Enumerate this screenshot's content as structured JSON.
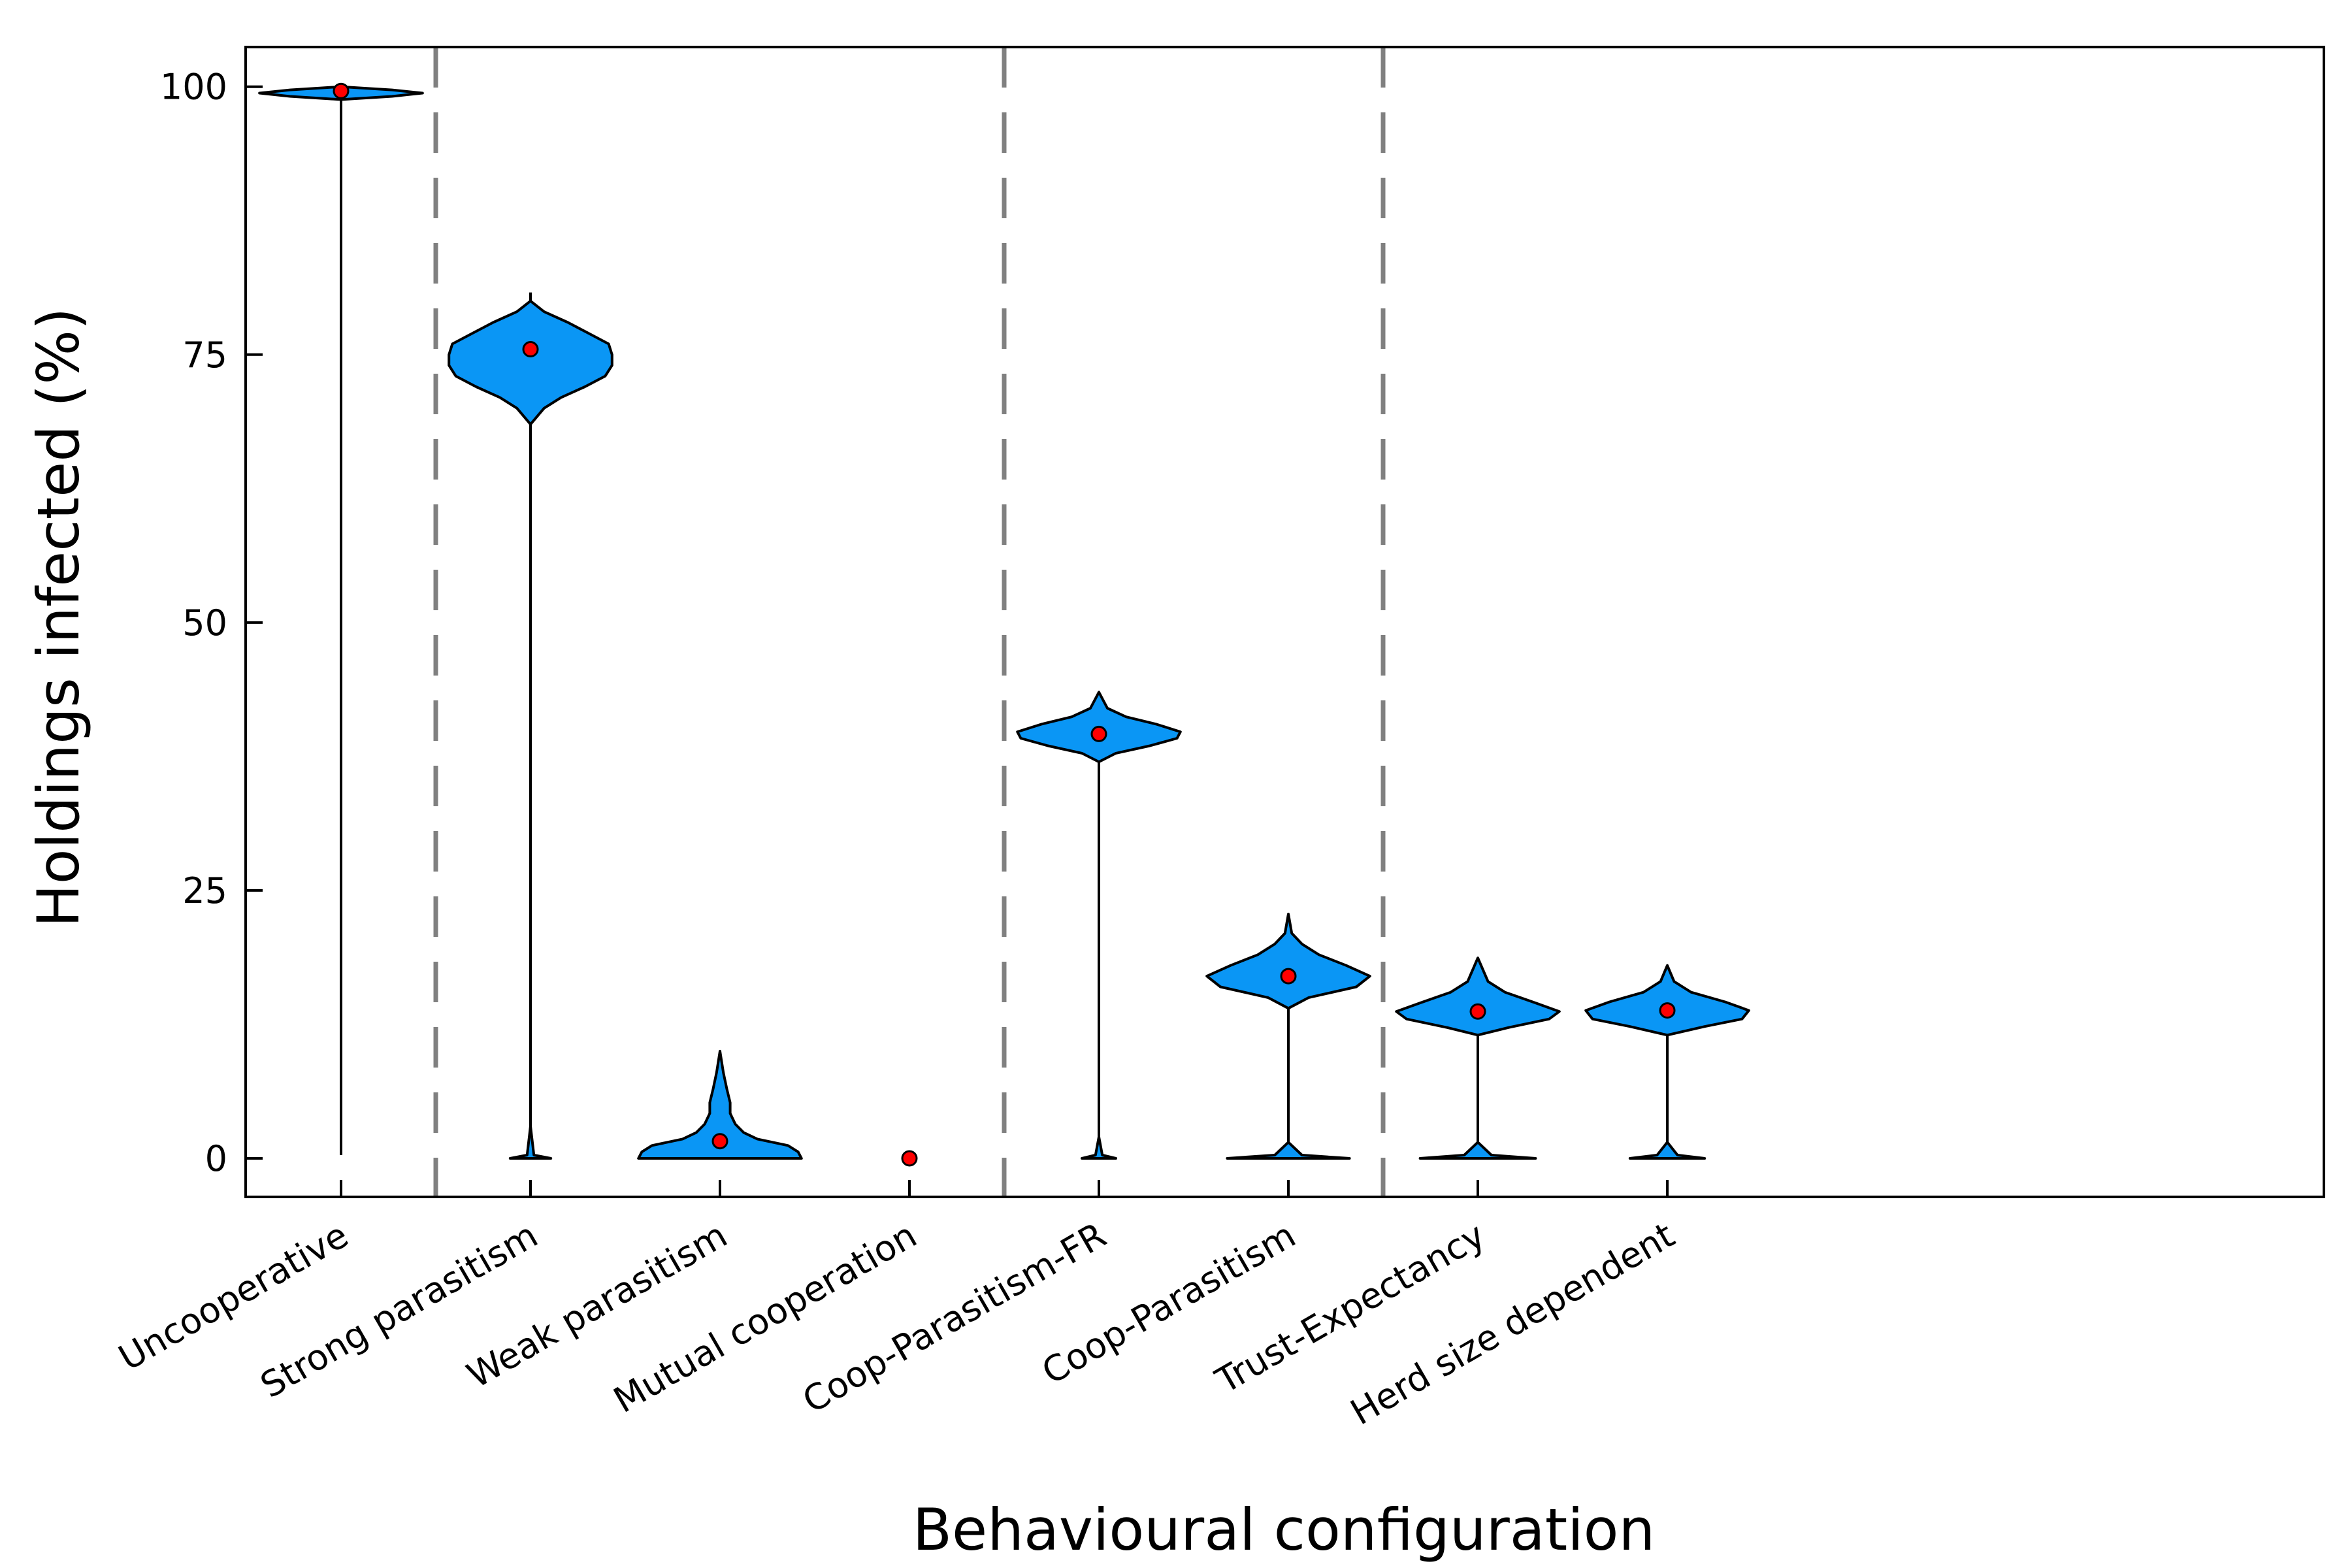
{
  "chart_data": {
    "type": "violin",
    "xlabel": "Behavioural configuration",
    "ylabel": "Holdings infected (%)",
    "ylim": [
      -3.6,
      103.7
    ],
    "yticks": [
      0,
      25,
      50,
      75,
      100
    ],
    "grid": false,
    "colors": {
      "violin_fill": "#0A96F5",
      "outline": "#000000",
      "mean_marker": "#FF0000",
      "separator": "#808080"
    },
    "group_separators_after": [
      "Uncooperative",
      "Mutual cooperation",
      "Coop-Parasitism"
    ],
    "categories": [
      "Uncooperative",
      "Strong parasitism",
      "Weak parasitism",
      "Mutual cooperation",
      "Coop-Parasitism-FR",
      "Coop-Parasitism",
      "Trust-Expectancy",
      "Herd size dependent"
    ],
    "series": [
      {
        "category": "Uncooperative",
        "mean": 99.6,
        "min": 0.3,
        "max": 100.0,
        "density": [
          [
            0.3,
            0.0
          ],
          [
            98.8,
            0.0
          ],
          [
            99.1,
            0.3
          ],
          [
            99.4,
            0.48
          ],
          [
            99.7,
            0.3
          ],
          [
            100.0,
            0.0
          ]
        ]
      },
      {
        "category": "Strong parasitism",
        "mean": 75.5,
        "min": 0.0,
        "max": 80.8,
        "density": [
          [
            0.0,
            0.12
          ],
          [
            0.3,
            0.02
          ],
          [
            3.0,
            0.0
          ],
          [
            68.5,
            0.0
          ],
          [
            70.0,
            0.08
          ],
          [
            71.0,
            0.18
          ],
          [
            72.0,
            0.32
          ],
          [
            73.0,
            0.44
          ],
          [
            74.0,
            0.48
          ],
          [
            75.0,
            0.48
          ],
          [
            76.0,
            0.46
          ],
          [
            77.0,
            0.34
          ],
          [
            78.0,
            0.22
          ],
          [
            79.0,
            0.08
          ],
          [
            80.0,
            0.0
          ],
          [
            80.8,
            0.0
          ]
        ]
      },
      {
        "category": "Weak parasitism",
        "mean": 1.6,
        "min": 0.0,
        "max": 10.0,
        "density": [
          [
            0.0,
            0.48
          ],
          [
            0.6,
            0.46
          ],
          [
            1.2,
            0.4
          ],
          [
            1.8,
            0.22
          ],
          [
            2.4,
            0.14
          ],
          [
            3.2,
            0.09
          ],
          [
            4.2,
            0.06
          ],
          [
            5.2,
            0.06
          ],
          [
            6.5,
            0.04
          ],
          [
            8.0,
            0.02
          ],
          [
            10.0,
            0.0
          ]
        ]
      },
      {
        "category": "Mutual cooperation",
        "mean": 0.0,
        "min": 0.0,
        "max": 0.05,
        "density": [
          [
            0.0,
            0.0
          ]
        ]
      },
      {
        "category": "Coop-Parasitism-FR",
        "mean": 39.6,
        "min": 0.0,
        "max": 43.5,
        "density": [
          [
            0.0,
            0.1
          ],
          [
            0.3,
            0.02
          ],
          [
            2.0,
            0.0
          ],
          [
            37.0,
            0.0
          ],
          [
            37.8,
            0.1
          ],
          [
            38.5,
            0.3
          ],
          [
            39.2,
            0.46
          ],
          [
            39.8,
            0.48
          ],
          [
            40.5,
            0.34
          ],
          [
            41.2,
            0.16
          ],
          [
            42.0,
            0.05
          ],
          [
            43.5,
            0.0
          ]
        ]
      },
      {
        "category": "Coop-Parasitism",
        "mean": 17.0,
        "min": 0.0,
        "max": 22.8,
        "density": [
          [
            0.0,
            0.36
          ],
          [
            0.3,
            0.08
          ],
          [
            1.5,
            0.0
          ],
          [
            14.0,
            0.0
          ],
          [
            15.0,
            0.12
          ],
          [
            16.0,
            0.4
          ],
          [
            17.0,
            0.48
          ],
          [
            18.0,
            0.34
          ],
          [
            19.0,
            0.18
          ],
          [
            20.0,
            0.08
          ],
          [
            21.0,
            0.02
          ],
          [
            22.8,
            0.0
          ]
        ]
      },
      {
        "category": "Trust-Expectancy",
        "mean": 13.7,
        "min": 0.0,
        "max": 18.7,
        "density": [
          [
            0.0,
            0.34
          ],
          [
            0.3,
            0.08
          ],
          [
            1.5,
            0.0
          ],
          [
            11.5,
            0.0
          ],
          [
            12.2,
            0.18
          ],
          [
            13.0,
            0.42
          ],
          [
            13.7,
            0.48
          ],
          [
            14.5,
            0.34
          ],
          [
            15.5,
            0.16
          ],
          [
            16.5,
            0.06
          ],
          [
            18.7,
            0.0
          ]
        ]
      },
      {
        "category": "Herd size dependent",
        "mean": 13.8,
        "min": 0.0,
        "max": 18.0,
        "density": [
          [
            0.0,
            0.22
          ],
          [
            0.3,
            0.06
          ],
          [
            1.5,
            0.0
          ],
          [
            11.5,
            0.0
          ],
          [
            12.3,
            0.22
          ],
          [
            13.0,
            0.44
          ],
          [
            13.8,
            0.48
          ],
          [
            14.6,
            0.34
          ],
          [
            15.5,
            0.14
          ],
          [
            16.5,
            0.04
          ],
          [
            18.0,
            0.0
          ]
        ]
      }
    ]
  }
}
